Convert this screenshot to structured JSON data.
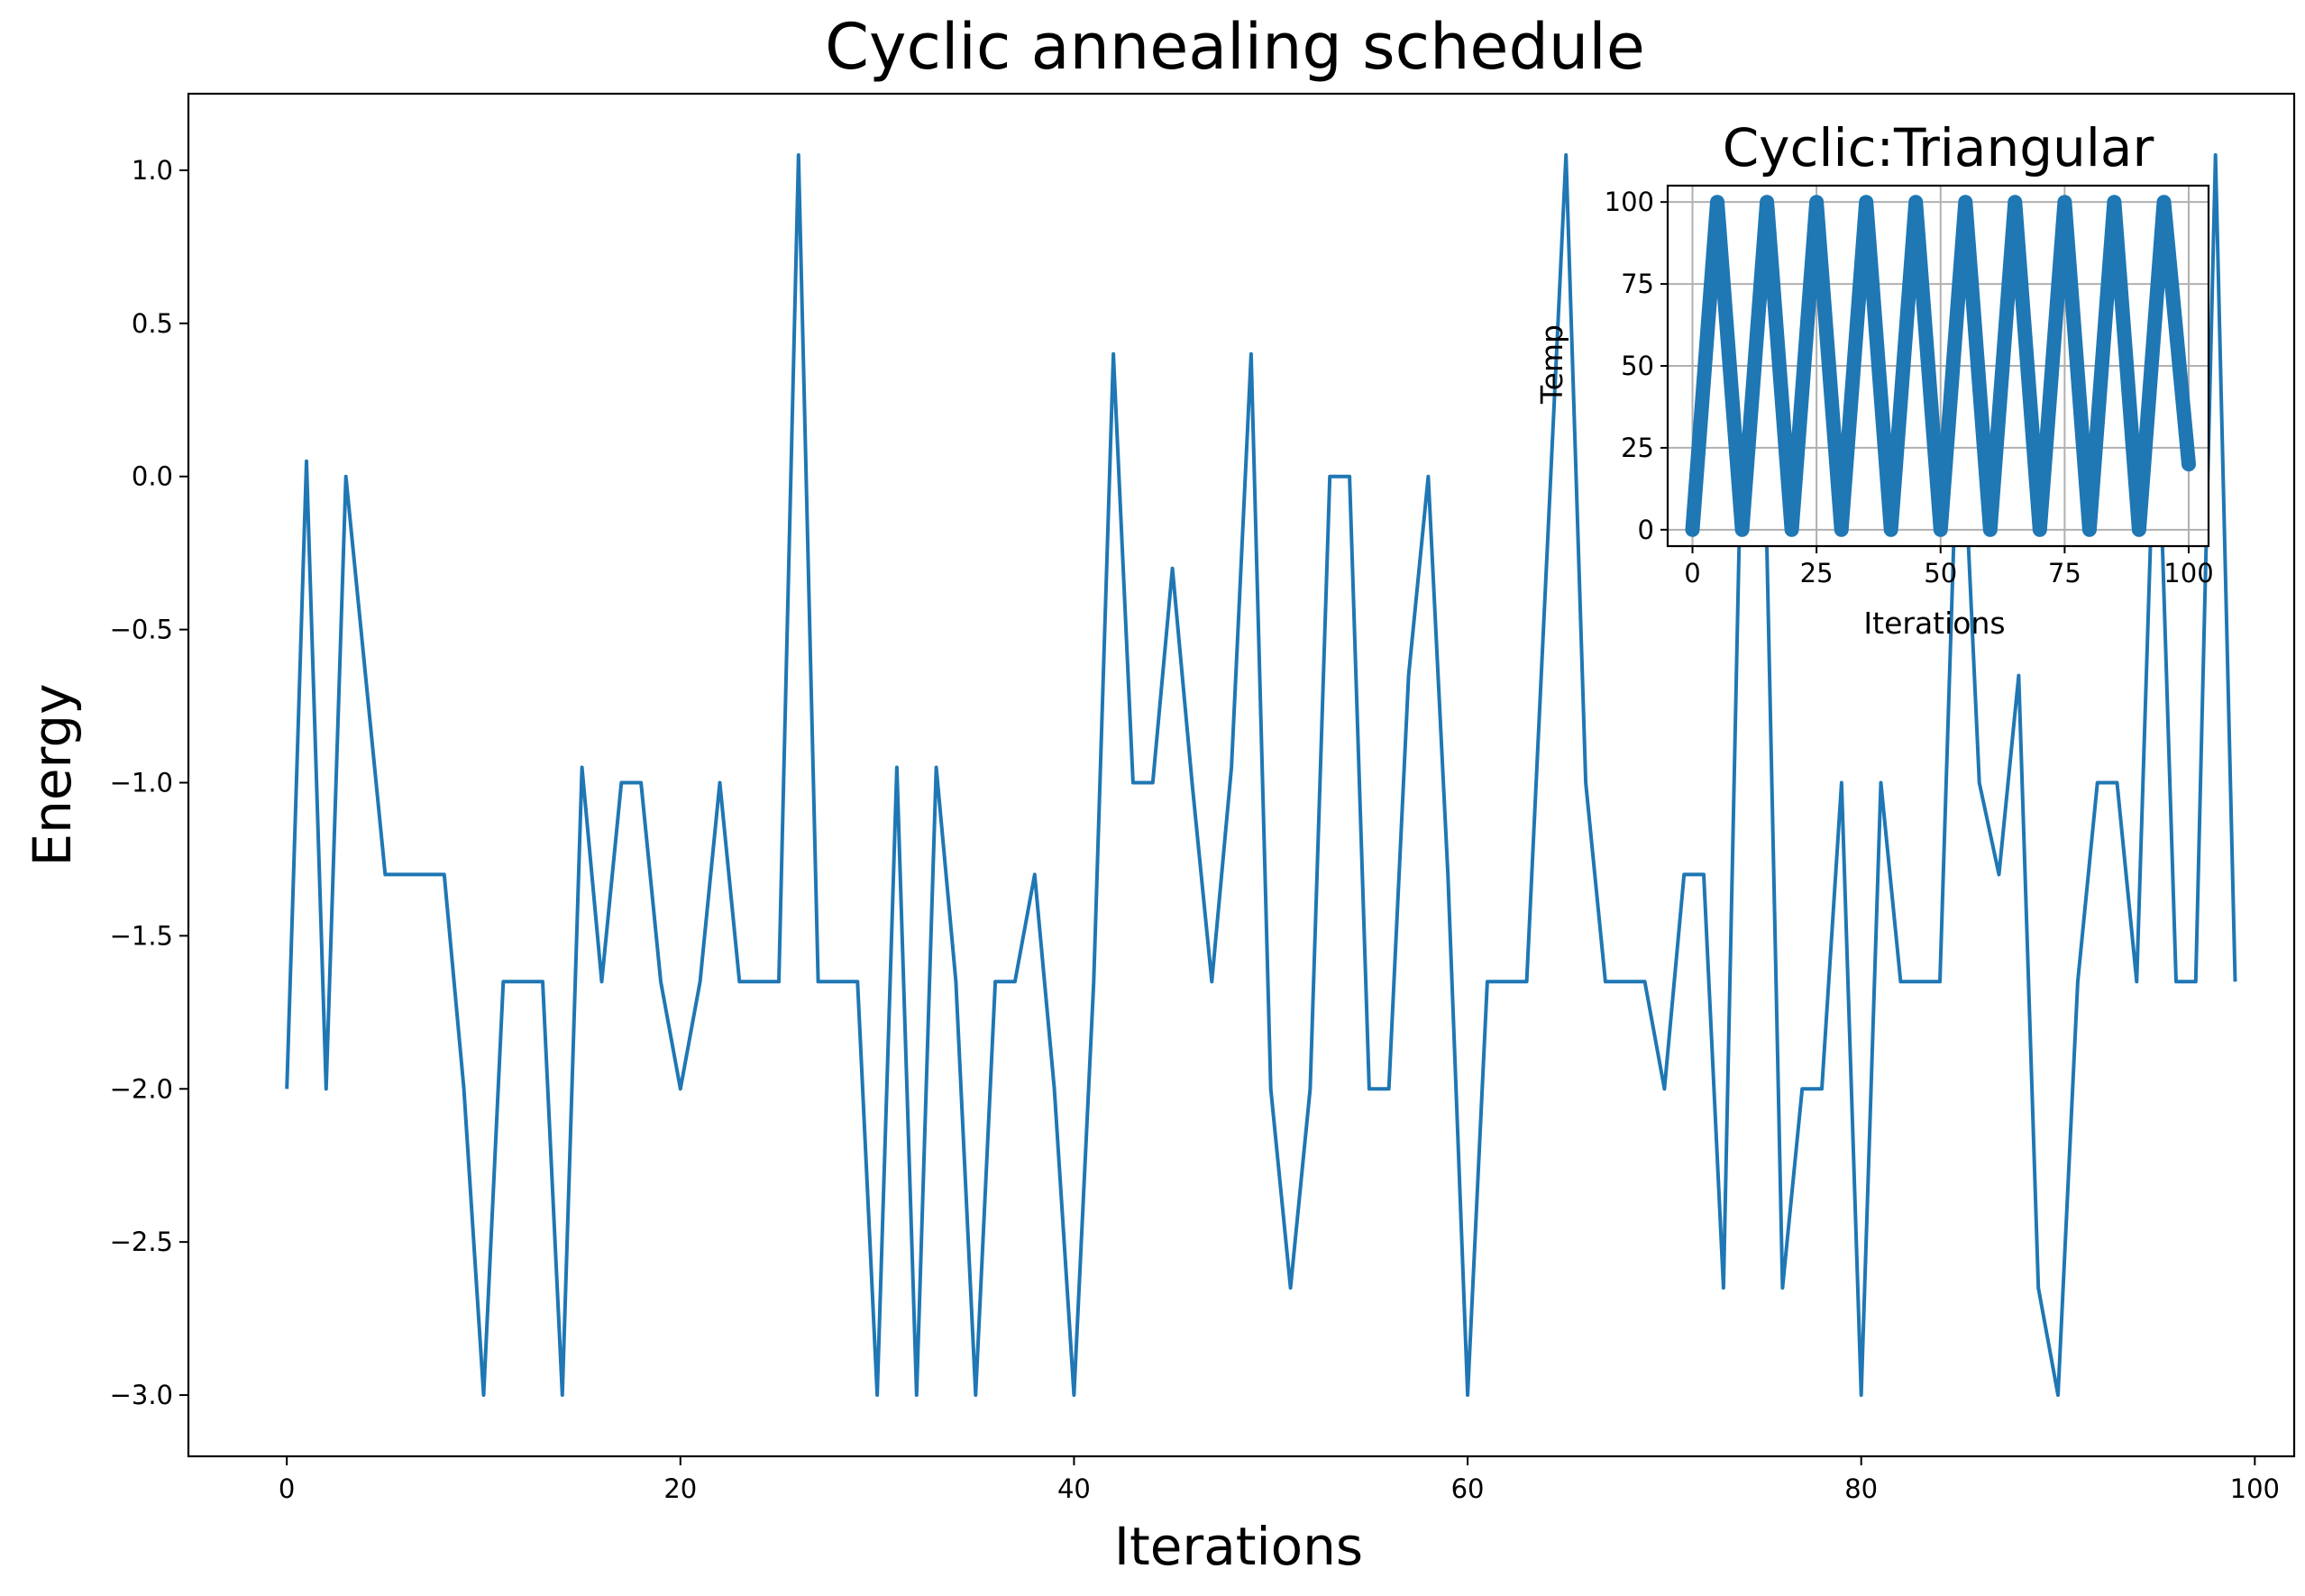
{
  "chart_data": [
    {
      "id": "main",
      "type": "line",
      "title": "Cyclic annealing schedule",
      "xlabel": "Iterations",
      "ylabel": "Energy",
      "xlim": [
        -5,
        102
      ],
      "ylim": [
        -3.2,
        1.25
      ],
      "grid": false,
      "xticks": [
        0,
        20,
        40,
        60,
        80,
        100
      ],
      "xtick_labels": [
        "0",
        "20",
        "40",
        "60",
        "80",
        "100"
      ],
      "yticks": [
        1.0,
        0.5,
        0.0,
        -0.5,
        -1.0,
        -1.5,
        -2.0,
        -2.5,
        -3.0
      ],
      "ytick_labels": [
        "1.0",
        "0.5",
        "0.0",
        "−0.5",
        "−1.0",
        "−1.5",
        "−2.0",
        "−2.5",
        "−3.0"
      ],
      "color": "#1f77b4",
      "series": [
        {
          "name": "Energy",
          "x": [
            0,
            1,
            2,
            3,
            4,
            5,
            6,
            7,
            8,
            9,
            10,
            11,
            12,
            13,
            14,
            15,
            16,
            17,
            18,
            19,
            20,
            21,
            22,
            23,
            24,
            25,
            26,
            27,
            28,
            29,
            30,
            31,
            32,
            33,
            34,
            35,
            36,
            37,
            38,
            39,
            40,
            41,
            42,
            43,
            44,
            45,
            46,
            47,
            48,
            49,
            50,
            51,
            52,
            53,
            54,
            55,
            56,
            57,
            58,
            59,
            60,
            61,
            62,
            63,
            64,
            65,
            66,
            67,
            68,
            69,
            70,
            71,
            72,
            73,
            74,
            75,
            76,
            77,
            78,
            79,
            80,
            81,
            82,
            83,
            84,
            85,
            86,
            87,
            88,
            89,
            90,
            91,
            92,
            93,
            94,
            95,
            96,
            97,
            98,
            99
          ],
          "values": [
            -2.0,
            0.05,
            -2.0,
            0.0,
            -0.65,
            -1.3,
            -1.3,
            -1.3,
            -1.3,
            -2.0,
            -3.0,
            -1.65,
            -1.65,
            -1.65,
            -3.0,
            -0.95,
            -1.65,
            -1.0,
            -1.0,
            -1.65,
            -2.0,
            -1.65,
            -1.0,
            -1.65,
            -1.65,
            -1.65,
            1.05,
            -1.65,
            -1.65,
            -1.65,
            -3.0,
            -0.95,
            -3.0,
            -0.95,
            -1.65,
            -3.0,
            -1.65,
            -1.65,
            -1.3,
            -2.0,
            -3.0,
            -1.65,
            0.4,
            -1.0,
            -1.0,
            -0.3,
            -1.0,
            -1.65,
            -0.95,
            0.4,
            -2.0,
            -2.65,
            -2.0,
            0.0,
            0.0,
            -2.0,
            -2.0,
            -0.65,
            0.0,
            -1.3,
            -3.0,
            -1.65,
            -1.65,
            -1.65,
            -0.3,
            1.05,
            -1.0,
            -1.65,
            -1.65,
            -1.65,
            -2.0,
            -1.3,
            -1.3,
            -2.65,
            0.4,
            0.4,
            -2.65,
            -2.0,
            -2.0,
            -1.0,
            -3.0,
            -1.0,
            -1.65,
            -1.65,
            -1.65,
            0.4,
            -1.0,
            -1.3,
            -0.65,
            -2.65,
            -3.0,
            -1.65,
            -1.0,
            -1.0,
            -1.65,
            0.4,
            -1.65,
            -1.65,
            1.05,
            -1.65
          ]
        }
      ]
    },
    {
      "id": "inset",
      "type": "line",
      "title": "Cyclic:Triangular",
      "xlabel": "Iterations",
      "ylabel": "Temp",
      "xlim": [
        -5,
        104
      ],
      "ylim": [
        -5,
        105
      ],
      "grid": true,
      "xticks": [
        0,
        25,
        50,
        75,
        100
      ],
      "xtick_labels": [
        "0",
        "25",
        "50",
        "75",
        "100"
      ],
      "yticks": [
        0,
        25,
        50,
        75,
        100
      ],
      "ytick_labels": [
        "0",
        "25",
        "50",
        "75",
        "100"
      ],
      "color": "#1f77b4",
      "series": [
        {
          "name": "Temp",
          "x": [
            0,
            5,
            10,
            15,
            20,
            25,
            30,
            35,
            40,
            45,
            50,
            55,
            60,
            65,
            70,
            75,
            80,
            85,
            90,
            95,
            100
          ],
          "values": [
            0,
            100,
            0,
            100,
            0,
            100,
            0,
            100,
            0,
            100,
            0,
            100,
            0,
            100,
            0,
            100,
            0,
            100,
            0,
            100,
            20
          ]
        }
      ]
    }
  ]
}
